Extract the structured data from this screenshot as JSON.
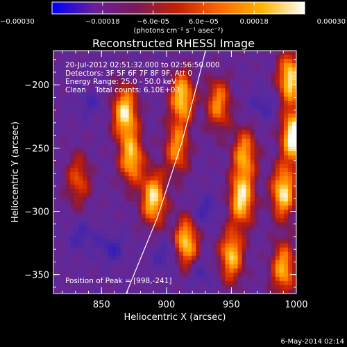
{
  "chart_data": {
    "type": "heatmap",
    "title": "Reconstructed RHESSI Image",
    "xlabel": "Heliocentric X (arcsec)",
    "ylabel": "Heliocentric Y (arcsec)",
    "xlim": [
      813,
      1000
    ],
    "ylim": [
      -365,
      -173
    ],
    "x_ticks": [
      850,
      900,
      950,
      1000
    ],
    "x_tick_labels": [
      "850",
      "900",
      "950",
      "1000"
    ],
    "y_ticks": [
      -200,
      -250,
      -300,
      -350
    ],
    "y_tick_labels": [
      "-200",
      "-250",
      "-300",
      "-350"
    ],
    "colorbar": {
      "range": [
        -0.0003,
        0.0003
      ],
      "ticks": [
        -0.0003,
        -0.00018,
        -6e-05,
        6e-05,
        0.00018,
        0.0003
      ],
      "tick_labels": [
        "-0.00030",
        "-0.00018",
        "-6.0e-05",
        "6.0e-05",
        "0.00018",
        "0.00030"
      ],
      "unit_label": "(photons cm⁻² s⁻¹ asec⁻²)",
      "colors": [
        "#0000ff",
        "#6a1e9a",
        "#7a1a5a",
        "#c82000",
        "#ff6a00",
        "#ffb400",
        "#ffffff"
      ]
    },
    "annotations": [
      "20-Jul-2012 02:51:32.000 to 02:56:50.000",
      "Detectors: 3F 5F 6F 7F 8F 9F, Att 0",
      "Energy Range: 25.0 - 50.0 keV",
      "Clean    Total counts: 6.10E+03",
      "Position of Peak = [998,-241]"
    ],
    "peak": {
      "x": 998,
      "y": -241
    },
    "limb_curve": [
      [
        869,
        -365
      ],
      [
        893,
        -305
      ],
      [
        912,
        -245
      ],
      [
        926,
        -190
      ],
      [
        930,
        -173
      ]
    ],
    "bright_sources": [
      {
        "x": 868,
        "y": -222,
        "intensity": 0.85
      },
      {
        "x": 873,
        "y": -258,
        "intensity": 0.75
      },
      {
        "x": 890,
        "y": -290,
        "intensity": 0.85
      },
      {
        "x": 912,
        "y": -210,
        "intensity": 0.8
      },
      {
        "x": 908,
        "y": -250,
        "intensity": 0.6
      },
      {
        "x": 915,
        "y": -325,
        "intensity": 0.8
      },
      {
        "x": 950,
        "y": -335,
        "intensity": 0.75
      },
      {
        "x": 958,
        "y": -290,
        "intensity": 0.85
      },
      {
        "x": 960,
        "y": -255,
        "intensity": 0.65
      },
      {
        "x": 940,
        "y": -215,
        "intensity": 0.6
      },
      {
        "x": 990,
        "y": -285,
        "intensity": 0.85
      },
      {
        "x": 998,
        "y": -241,
        "intensity": 1.0
      },
      {
        "x": 995,
        "y": -195,
        "intensity": 0.85
      },
      {
        "x": 990,
        "y": -345,
        "intensity": 0.7
      },
      {
        "x": 832,
        "y": -275,
        "intensity": 0.45
      }
    ],
    "dark_sources": [
      {
        "x": 835,
        "y": -320,
        "intensity": 0.6
      },
      {
        "x": 858,
        "y": -330,
        "intensity": 0.7
      },
      {
        "x": 900,
        "y": -335,
        "intensity": 0.6
      },
      {
        "x": 930,
        "y": -300,
        "intensity": 0.65
      },
      {
        "x": 840,
        "y": -215,
        "intensity": 0.5
      },
      {
        "x": 975,
        "y": -215,
        "intensity": 0.6
      },
      {
        "x": 925,
        "y": -350,
        "intensity": 0.55
      }
    ]
  },
  "footer": {
    "timestamp": "6-May-2014 02:14"
  }
}
